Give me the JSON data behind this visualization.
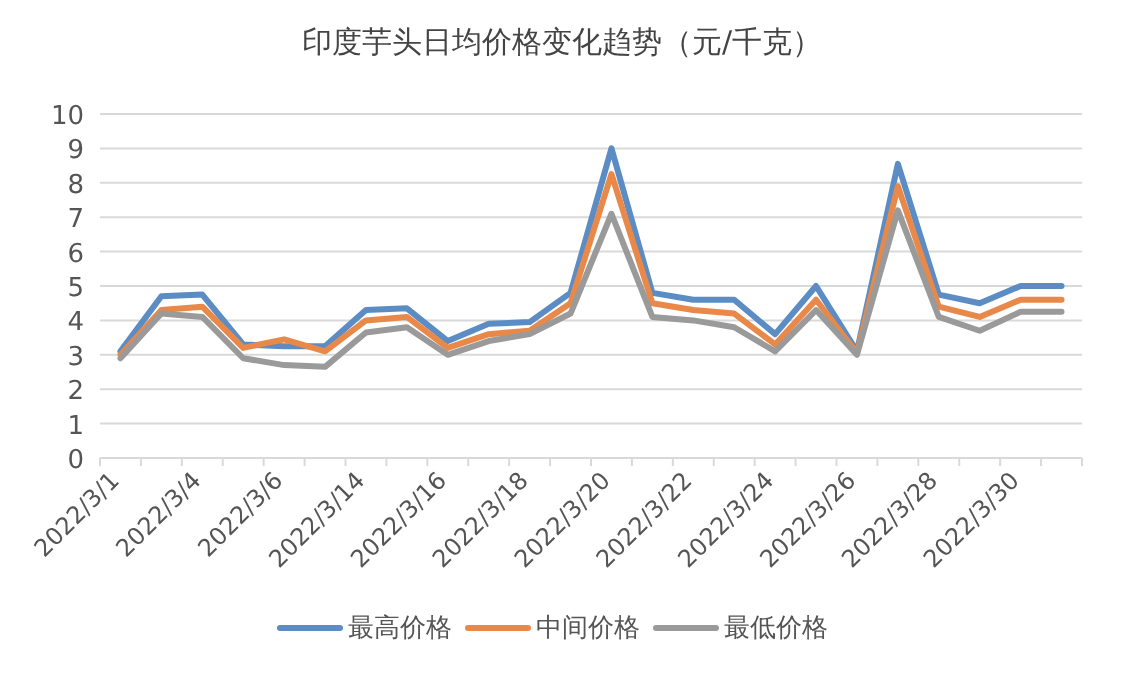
{
  "chart_data": {
    "type": "line",
    "title": "印度芋头日均价格变化趋势（元/千克）",
    "categories": [
      "2022/3/1",
      null,
      "2022/3/4",
      null,
      "2022/3/6",
      null,
      "2022/3/14",
      null,
      "2022/3/16",
      null,
      "2022/3/18",
      null,
      "2022/3/20",
      null,
      "2022/3/22",
      null,
      "2022/3/24",
      null,
      "2022/3/26",
      null,
      "2022/3/28",
      null,
      "2022/3/30",
      null
    ],
    "series": [
      {
        "name": "最高价格",
        "color": "#5b8cc4",
        "values": [
          3.1,
          4.7,
          4.75,
          3.3,
          3.25,
          3.25,
          4.3,
          4.35,
          3.4,
          3.9,
          3.95,
          4.8,
          9.0,
          4.8,
          4.6,
          4.6,
          3.6,
          5.0,
          3.1,
          8.55,
          4.75,
          4.5,
          5.0,
          5.0
        ]
      },
      {
        "name": "中间价格",
        "color": "#e8894a",
        "values": [
          3.0,
          4.3,
          4.4,
          3.2,
          3.45,
          3.1,
          4.0,
          4.1,
          3.2,
          3.6,
          3.7,
          4.5,
          8.25,
          4.5,
          4.3,
          4.2,
          3.3,
          4.6,
          3.05,
          7.9,
          4.4,
          4.1,
          4.6,
          4.6
        ]
      },
      {
        "name": "最低价格",
        "color": "#9a9a9a",
        "values": [
          2.9,
          4.2,
          4.1,
          2.9,
          2.7,
          2.65,
          3.65,
          3.8,
          3.0,
          3.4,
          3.6,
          4.2,
          7.1,
          4.1,
          4.0,
          3.8,
          3.1,
          4.3,
          3.0,
          7.2,
          4.1,
          3.7,
          4.25,
          4.25
        ]
      }
    ],
    "ylim": [
      0,
      10
    ],
    "yticks": [
      0,
      1,
      2,
      3,
      4,
      5,
      6,
      7,
      8,
      9,
      10
    ],
    "grid": "y",
    "legend": "bottom",
    "marker": "none",
    "line_style": "solid"
  }
}
